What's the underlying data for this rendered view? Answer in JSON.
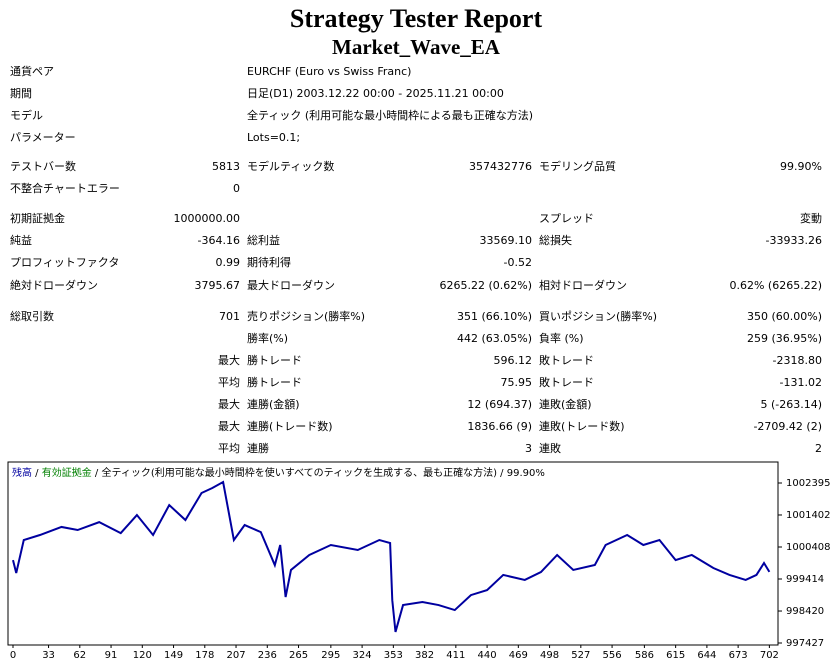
{
  "header": {
    "title": "Strategy Tester Report",
    "subtitle": "Market_Wave_EA"
  },
  "info": [
    {
      "label": "通貨ペア",
      "value": "EURCHF (Euro vs Swiss Franc)"
    },
    {
      "label": "期間",
      "value": "日足(D1) 2003.12.22 00:00 - 2025.11.21 00:00"
    },
    {
      "label": "モデル",
      "value": "全ティック (利用可能な最小時間枠による最も正確な方法)"
    },
    {
      "label": "パラメーター",
      "value": "Lots=0.1;"
    }
  ],
  "stats": [
    {
      "cells": [
        "テストバー数",
        "5813",
        "モデルティック数",
        "357432776",
        "モデリング品質",
        "99.90%"
      ]
    },
    {
      "cells": [
        "不整合チャートエラー",
        "0",
        null,
        null,
        null,
        null
      ]
    },
    {
      "cells": [
        "初期証拠金",
        "1000000.00",
        null,
        null,
        "スプレッド",
        "変動"
      ]
    },
    {
      "cells": [
        "純益",
        "-364.16",
        "総利益",
        "33569.10",
        "総損失",
        "-33933.26"
      ]
    },
    {
      "cells": [
        "プロフィットファクタ",
        "0.99",
        "期待利得",
        "-0.52",
        null,
        null
      ]
    },
    {
      "cells": [
        "絶対ドローダウン",
        "3795.67",
        "最大ドローダウン",
        "6265.22 (0.62%)",
        "相対ドローダウン",
        "0.62% (6265.22)"
      ]
    },
    {
      "cells": [
        "総取引数",
        "701",
        "売りポジション(勝率%)",
        "351 (66.10%)",
        "買いポジション(勝率%)",
        "350 (60.00%)"
      ]
    },
    {
      "cells": [
        null,
        null,
        "勝率(%)",
        "442 (63.05%)",
        "負率 (%)",
        "259 (36.95%)"
      ]
    },
    {
      "cells": [
        null,
        "最大",
        "勝トレード",
        "596.12",
        "敗トレード",
        "-2318.80"
      ]
    },
    {
      "cells": [
        null,
        "平均",
        "勝トレード",
        "75.95",
        "敗トレード",
        "-131.02"
      ]
    },
    {
      "cells": [
        null,
        "最大",
        "連勝(金額)",
        "12 (694.37)",
        "連敗(金額)",
        "5 (-263.14)"
      ]
    },
    {
      "cells": [
        null,
        "最大",
        "連勝(トレード数)",
        "1836.66 (9)",
        "連敗(トレード数)",
        "-2709.42 (2)"
      ]
    },
    {
      "cells": [
        null,
        "平均",
        "連勝",
        "3",
        "連敗",
        "2"
      ]
    }
  ],
  "chart_data": {
    "type": "line",
    "legend": [
      "残高",
      "有効証拠金",
      "全ティック(利用可能な最小時間枠を使いすべてのティックを生成する、最も正確な方法)",
      "99.90%"
    ],
    "legend_colors": [
      "#0000a0",
      "#008000",
      "#000000",
      "#000000"
    ],
    "x": [
      0,
      3,
      10,
      25,
      45,
      60,
      80,
      100,
      115,
      130,
      145,
      160,
      175,
      185,
      195,
      205,
      215,
      230,
      243,
      248,
      253,
      258,
      275,
      295,
      320,
      340,
      350,
      352,
      355,
      362,
      380,
      395,
      410,
      425,
      440,
      455,
      475,
      490,
      505,
      520,
      540,
      550,
      570,
      585,
      600,
      615,
      630,
      650,
      665,
      680,
      690,
      697,
      702
    ],
    "series": [
      {
        "name": "残高",
        "color": "#0000a0",
        "values": [
          1000000,
          999600,
          1000625,
          1000780,
          1001030,
          1000935,
          1001180,
          1000840,
          1001400,
          1000780,
          1001710,
          1001245,
          1002085,
          1002240,
          1002425,
          1000625,
          1001090,
          1000870,
          999845,
          1000470,
          998855,
          999695,
          1000160,
          1000470,
          1000315,
          1000625,
          1000530,
          998760,
          997770,
          998605,
          998700,
          998605,
          998450,
          998915,
          999070,
          999540,
          999385,
          999630,
          1000160,
          999695,
          999850,
          1000470,
          1000780,
          1000470,
          1000625,
          1000000,
          1000160,
          999755,
          999540,
          999385,
          999540,
          999910,
          999636
        ]
      }
    ],
    "xlim": [
      0,
      710
    ],
    "ylim": [
      997365,
      1003016
    ],
    "xticks": [
      0,
      33,
      62,
      91,
      120,
      149,
      178,
      207,
      236,
      265,
      295,
      324,
      353,
      382,
      411,
      440,
      469,
      498,
      527,
      556,
      586,
      615,
      644,
      673,
      702
    ],
    "yticks": [
      997427,
      998420,
      999414,
      1000408,
      1001402,
      1002395
    ],
    "grid": false
  }
}
